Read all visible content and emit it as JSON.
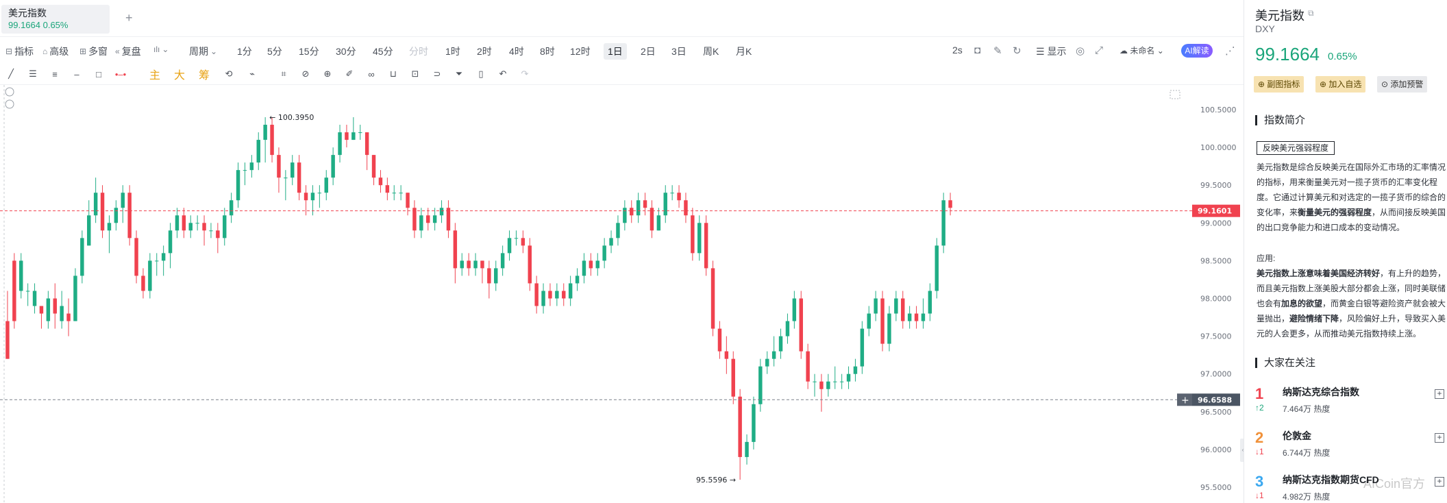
{
  "tab": {
    "title": "美元指数",
    "price_change": "99.1664 0.65%",
    "add": "+"
  },
  "toolbar1": {
    "indicators": "指标",
    "advanced": "高级",
    "multi_window": "多窗",
    "replay": "复盘",
    "period": "周期",
    "timeframes": [
      "1分",
      "5分",
      "15分",
      "30分",
      "45分",
      "分时",
      "1时",
      "2时",
      "4时",
      "8时",
      "12时",
      "1日",
      "2日",
      "3日",
      "周K",
      "月K"
    ],
    "active_timeframe": "1日",
    "refresh_interval": "2s",
    "display": "显示",
    "layout_name": "未命名",
    "ai_button": "AI解读"
  },
  "toolbar2": {
    "main": "主",
    "big": "大",
    "chip": "筹"
  },
  "chart": {
    "y_axis": {
      "min": 95.5,
      "max": 100.5,
      "ticks": [
        "100.5000",
        "100.0000",
        "99.5000",
        "99.0000",
        "98.5000",
        "98.0000",
        "97.5000",
        "97.0000",
        "96.5000",
        "96.0000",
        "95.5000"
      ]
    },
    "current_price": {
      "value": 99.1601,
      "label": "99.1601",
      "color": "#f0424f"
    },
    "crosshair_price": {
      "value": 96.6588,
      "label": "96.6588"
    },
    "high_annotation": "← 100.3950",
    "low_annotation": "95.5596 →",
    "colors": {
      "up": "#1fad85",
      "down": "#f0424f"
    },
    "candles": [
      [
        97.7,
        97.2,
        98.1,
        97.2
      ],
      [
        98.5,
        97.7,
        98.6,
        97.6
      ],
      [
        98.1,
        98.5,
        98.6,
        98.0
      ],
      [
        98.1,
        98.1,
        98.2,
        97.9
      ],
      [
        97.9,
        98.1,
        98.2,
        97.8
      ],
      [
        97.9,
        97.8,
        97.9,
        97.6
      ],
      [
        97.7,
        98.0,
        98.1,
        97.6
      ],
      [
        98.0,
        97.8,
        98.2,
        97.6
      ],
      [
        97.7,
        97.9,
        98.1,
        97.6
      ],
      [
        97.8,
        97.7,
        98.0,
        97.5
      ],
      [
        97.7,
        98.3,
        98.4,
        97.7
      ],
      [
        98.3,
        98.8,
        98.9,
        98.2
      ],
      [
        98.7,
        99.1,
        99.3,
        98.7
      ],
      [
        99.1,
        99.4,
        99.6,
        99.0
      ],
      [
        99.4,
        98.9,
        99.5,
        98.8
      ],
      [
        98.9,
        99.0,
        99.1,
        98.6
      ],
      [
        99.0,
        99.2,
        99.3,
        98.9
      ],
      [
        99.2,
        99.4,
        99.5,
        99.0
      ],
      [
        99.4,
        98.8,
        99.5,
        98.7
      ],
      [
        98.8,
        98.3,
        98.9,
        98.2
      ],
      [
        98.3,
        98.1,
        98.4,
        98.0
      ],
      [
        98.1,
        98.5,
        98.6,
        98.0
      ],
      [
        98.5,
        98.5,
        98.6,
        98.3
      ],
      [
        98.5,
        98.6,
        98.7,
        98.3
      ],
      [
        98.6,
        98.9,
        99.0,
        98.4
      ],
      [
        98.9,
        99.1,
        99.2,
        98.8
      ],
      [
        99.1,
        98.9,
        99.2,
        98.8
      ],
      [
        98.9,
        99.0,
        99.1,
        98.8
      ],
      [
        99.0,
        99.0,
        99.1,
        98.9
      ],
      [
        99.0,
        98.9,
        99.1,
        98.7
      ],
      [
        98.9,
        98.9,
        99.0,
        98.8
      ],
      [
        98.9,
        98.8,
        99.0,
        98.6
      ],
      [
        98.8,
        99.1,
        99.2,
        98.7
      ],
      [
        99.1,
        99.3,
        99.4,
        99.0
      ],
      [
        99.3,
        99.7,
        99.8,
        99.2
      ],
      [
        99.7,
        99.7,
        99.8,
        99.5
      ],
      [
        99.7,
        99.8,
        99.9,
        99.6
      ],
      [
        99.8,
        100.1,
        100.2,
        99.7
      ],
      [
        100.1,
        100.3,
        100.4,
        99.8
      ],
      [
        100.3,
        99.9,
        100.4,
        99.8
      ],
      [
        99.9,
        99.6,
        100.0,
        99.4
      ],
      [
        99.6,
        99.6,
        99.7,
        99.3
      ],
      [
        99.6,
        99.8,
        99.9,
        99.5
      ],
      [
        99.8,
        99.4,
        99.9,
        99.3
      ],
      [
        99.4,
        99.3,
        99.5,
        99.1
      ],
      [
        99.3,
        99.4,
        99.5,
        99.1
      ],
      [
        99.4,
        99.4,
        99.5,
        99.2
      ],
      [
        99.4,
        99.6,
        99.7,
        99.3
      ],
      [
        99.6,
        99.9,
        100.0,
        99.5
      ],
      [
        99.9,
        100.2,
        100.3,
        99.8
      ],
      [
        100.2,
        100.1,
        100.3,
        100.0
      ],
      [
        100.1,
        100.2,
        100.4,
        100.1
      ],
      [
        100.2,
        100.2,
        100.3,
        100.1
      ],
      [
        100.2,
        99.9,
        100.2,
        99.7
      ],
      [
        99.9,
        99.6,
        99.9,
        99.5
      ],
      [
        99.6,
        99.5,
        99.7,
        99.4
      ],
      [
        99.5,
        99.4,
        99.6,
        99.3
      ],
      [
        99.4,
        99.4,
        99.5,
        99.3
      ],
      [
        99.4,
        99.4,
        99.5,
        99.3
      ],
      [
        99.4,
        99.2,
        99.4,
        99.1
      ],
      [
        99.2,
        98.9,
        99.3,
        98.8
      ],
      [
        98.9,
        99.1,
        99.2,
        98.8
      ],
      [
        99.1,
        99.0,
        99.2,
        98.9
      ],
      [
        99.0,
        99.1,
        99.2,
        98.9
      ],
      [
        99.1,
        99.2,
        99.3,
        99.0
      ],
      [
        99.2,
        98.9,
        99.3,
        98.8
      ],
      [
        98.9,
        98.4,
        99.0,
        98.2
      ],
      [
        98.4,
        98.5,
        98.6,
        98.3
      ],
      [
        98.5,
        98.4,
        98.6,
        98.3
      ],
      [
        98.4,
        98.5,
        98.6,
        98.3
      ],
      [
        98.5,
        98.4,
        98.5,
        98.2
      ],
      [
        98.4,
        98.2,
        98.5,
        98.0
      ],
      [
        98.2,
        98.4,
        98.5,
        98.1
      ],
      [
        98.4,
        98.6,
        98.7,
        98.3
      ],
      [
        98.6,
        98.8,
        98.9,
        98.5
      ],
      [
        98.8,
        98.8,
        98.9,
        98.7
      ],
      [
        98.8,
        98.7,
        98.9,
        98.6
      ],
      [
        98.7,
        98.2,
        98.8,
        98.1
      ],
      [
        98.2,
        97.9,
        98.3,
        97.8
      ],
      [
        97.9,
        98.1,
        98.2,
        97.8
      ],
      [
        98.1,
        98.0,
        98.2,
        97.9
      ],
      [
        98.0,
        98.1,
        98.2,
        97.9
      ],
      [
        98.1,
        98.0,
        98.2,
        97.9
      ],
      [
        98.0,
        98.2,
        98.3,
        97.9
      ],
      [
        98.2,
        98.3,
        98.4,
        98.1
      ],
      [
        98.3,
        98.5,
        98.6,
        98.2
      ],
      [
        98.5,
        98.4,
        98.6,
        98.3
      ],
      [
        98.4,
        98.5,
        98.6,
        98.3
      ],
      [
        98.5,
        98.7,
        98.8,
        98.4
      ],
      [
        98.7,
        98.8,
        98.9,
        98.6
      ],
      [
        98.8,
        99.0,
        99.1,
        98.7
      ],
      [
        99.0,
        99.2,
        99.3,
        98.9
      ],
      [
        99.2,
        99.1,
        99.3,
        99.0
      ],
      [
        99.1,
        99.3,
        99.4,
        99.0
      ],
      [
        99.3,
        99.2,
        99.4,
        99.1
      ],
      [
        99.2,
        98.9,
        99.3,
        98.8
      ],
      [
        98.9,
        99.1,
        99.2,
        98.9
      ],
      [
        99.1,
        99.4,
        99.5,
        99.0
      ],
      [
        99.4,
        99.4,
        99.5,
        99.3
      ],
      [
        99.4,
        99.3,
        99.5,
        99.2
      ],
      [
        99.3,
        99.1,
        99.4,
        99.0
      ],
      [
        99.1,
        98.6,
        99.2,
        98.5
      ],
      [
        98.6,
        99.0,
        99.1,
        98.5
      ],
      [
        99.0,
        98.4,
        99.1,
        98.3
      ],
      [
        98.4,
        97.6,
        98.5,
        97.5
      ],
      [
        97.6,
        97.3,
        97.7,
        97.2
      ],
      [
        97.3,
        97.2,
        97.5,
        97.0
      ],
      [
        97.2,
        96.7,
        97.3,
        96.6
      ],
      [
        96.7,
        95.9,
        96.8,
        95.6
      ],
      [
        95.9,
        96.1,
        96.2,
        95.8
      ],
      [
        96.1,
        96.6,
        96.7,
        96.0
      ],
      [
        96.6,
        97.1,
        97.2,
        96.5
      ],
      [
        97.1,
        97.2,
        97.3,
        97.0
      ],
      [
        97.2,
        97.3,
        97.5,
        97.1
      ],
      [
        97.3,
        97.5,
        97.6,
        97.2
      ],
      [
        97.5,
        97.7,
        97.8,
        97.4
      ],
      [
        97.7,
        98.0,
        98.1,
        97.6
      ],
      [
        98.0,
        97.3,
        98.1,
        97.2
      ],
      [
        97.3,
        96.9,
        97.4,
        96.8
      ],
      [
        96.9,
        96.9,
        97.0,
        96.7
      ],
      [
        96.9,
        96.8,
        97.0,
        96.5
      ],
      [
        96.8,
        96.9,
        97.0,
        96.7
      ],
      [
        96.9,
        96.9,
        97.1,
        96.8
      ],
      [
        96.9,
        96.9,
        97.0,
        96.8
      ],
      [
        96.9,
        97.0,
        97.1,
        96.8
      ],
      [
        97.0,
        97.1,
        97.2,
        96.9
      ],
      [
        97.1,
        97.6,
        97.7,
        97.0
      ],
      [
        97.6,
        97.8,
        97.9,
        97.5
      ],
      [
        97.8,
        98.0,
        98.1,
        97.7
      ],
      [
        98.0,
        97.4,
        98.1,
        97.3
      ],
      [
        97.4,
        97.8,
        97.9,
        97.3
      ],
      [
        97.8,
        98.0,
        98.1,
        97.7
      ],
      [
        98.0,
        97.7,
        98.1,
        97.6
      ],
      [
        97.7,
        97.8,
        97.9,
        97.6
      ],
      [
        97.8,
        97.7,
        97.9,
        97.6
      ],
      [
        97.7,
        97.8,
        98.0,
        97.6
      ],
      [
        97.8,
        98.1,
        98.2,
        97.7
      ],
      [
        98.1,
        98.7,
        98.8,
        98.0
      ],
      [
        98.7,
        99.3,
        99.4,
        98.6
      ],
      [
        99.3,
        99.2,
        99.4,
        99.1
      ]
    ]
  },
  "panel": {
    "title": "美元指数",
    "copy_icon": "copy-icon",
    "code": "DXY",
    "price": "99.1664",
    "change": "0.65%",
    "buttons": {
      "sub_indicator": "副图指标",
      "add_watch": "加入自选",
      "add_alert": "添加预警"
    },
    "intro_title": "指数简介",
    "tag": "反映美元强弱程度",
    "intro": {
      "l1": "美元指数是综合反映美元在国际外汇市场的汇率情况",
      "l2": "的指标，用来衡量美元对一揽子货币的汇率变化程",
      "l3": "度。它通过计算美元和对选定的一揽子货币的综合的",
      "l4a": "变化率，来",
      "l4b": "衡量美元的强弱程度",
      "l4c": "，从而间接反映美国",
      "l5": "的出口竞争能力和进口成本的变动情况。"
    },
    "usage": {
      "label": "应用:",
      "l1a": "美元指数上涨意味着美国经济转好",
      "l1b": "，有上升的趋势，",
      "l2": "而且美元指数上涨美股大部分都会上涨，同时美联储",
      "l3a": "也会有",
      "l3b": "加息的欲望",
      "l3c": "，而黄金白银等避险资产就会被大",
      "l4a": "量抛出，",
      "l4b": "避险情绪下降",
      "l4c": "，风险偏好上升，导致买入美",
      "l5": "元的人会更多，从而推动美元指数持续上涨。"
    },
    "popular_title": "大家在关注",
    "popular": [
      {
        "rank": "1",
        "name": "纳斯达克综合指数",
        "trend": "↑2",
        "heat": "7.464万 热度",
        "rank_color": "#f0424f",
        "trend_color": "#1aa57a"
      },
      {
        "rank": "2",
        "name": "伦敦金",
        "trend": "↓1",
        "heat": "6.744万 热度",
        "rank_color": "#f0913a",
        "trend_color": "#f0424f"
      },
      {
        "rank": "3",
        "name": "纳斯达克指数期货CFD",
        "trend": "↓1",
        "heat": "4.982万 热度",
        "rank_color": "#3aa8f0",
        "trend_color": "#f0424f"
      }
    ]
  },
  "watermark": "AICoin官方"
}
